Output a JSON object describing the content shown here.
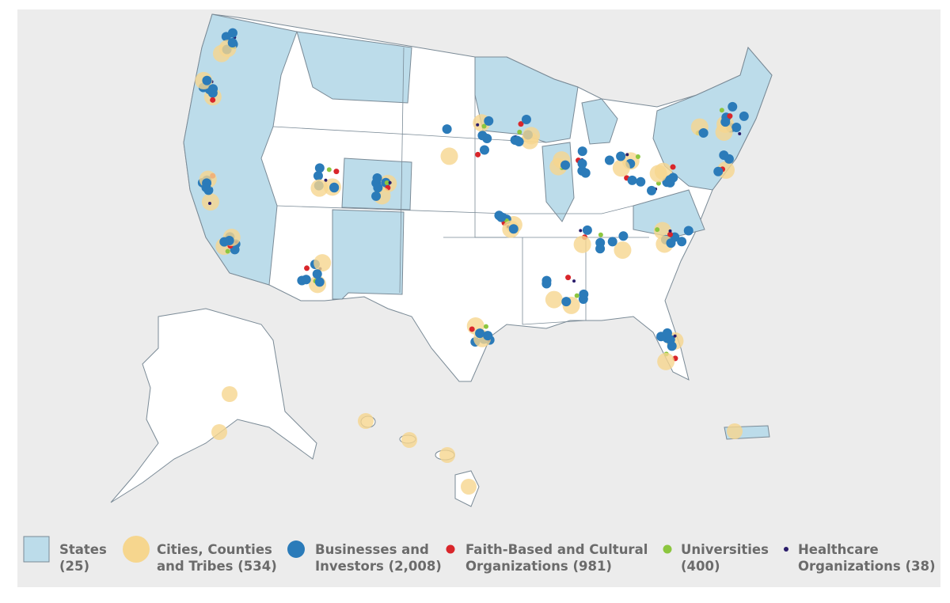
{
  "map": {
    "legend": [
      {
        "lines": [
          "States",
          "(25)"
        ],
        "color": "#bcdcea",
        "shape": "square"
      },
      {
        "lines": [
          "Cities, Counties",
          "and Tribes (534)"
        ],
        "color": "#f6d68e",
        "shape": "large-circle"
      },
      {
        "lines": [
          "Businesses and",
          "Investors (2,008)"
        ],
        "color": "#2b7bb9",
        "shape": "circle"
      },
      {
        "lines": [
          "Faith-Based and Cultural",
          "Organizations (981)"
        ],
        "color": "#d9262b",
        "shape": "dot"
      },
      {
        "lines": [
          "Universities",
          "(400)"
        ],
        "color": "#8cc63f",
        "shape": "dot"
      },
      {
        "lines": [
          "Healthcare",
          "Organizations (38)"
        ],
        "color": "#2b1d6b",
        "shape": "small-dot"
      }
    ]
  }
}
